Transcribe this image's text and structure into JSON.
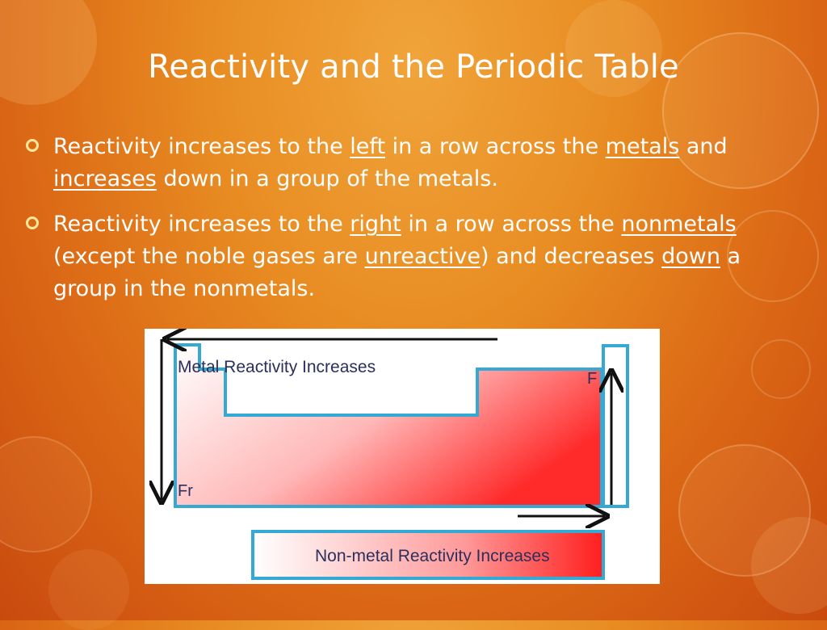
{
  "slide": {
    "title": "Reactivity and the Periodic Table",
    "bullets": [
      {
        "segments": [
          {
            "text": "Reactivity increases to the ",
            "underline": false
          },
          {
            "text": "left",
            "underline": true
          },
          {
            "text": " in a row across the ",
            "underline": false
          },
          {
            "text": "metals",
            "underline": true
          },
          {
            "text": " and ",
            "underline": false
          },
          {
            "text": "increases",
            "underline": true
          },
          {
            "text": " down in a group of the metals.",
            "underline": false
          }
        ]
      },
      {
        "segments": [
          {
            "text": "Reactivity increases to the ",
            "underline": false
          },
          {
            "text": "right",
            "underline": true
          },
          {
            "text": " in a row across the ",
            "underline": false
          },
          {
            "text": "nonmetals",
            "underline": true
          },
          {
            "text": " (except the noble gases are ",
            "underline": false
          },
          {
            "text": "unreactive",
            "underline": true
          },
          {
            "text": ") and decreases ",
            "underline": false
          },
          {
            "text": "down",
            "underline": true
          },
          {
            "text": " a group in the nonmetals.",
            "underline": false
          }
        ]
      }
    ]
  },
  "figure": {
    "metal_label": "Metal Reactivity Increases",
    "nonmetal_label": "Non-metal Reactivity Increases",
    "element_fr": "Fr",
    "element_f": "F",
    "colors": {
      "outline": "#35a9d4",
      "gradient_light": "#ffffff",
      "gradient_dark": "#ff2a2a",
      "arrow": "#111111",
      "label": "#2b2f5c"
    }
  }
}
